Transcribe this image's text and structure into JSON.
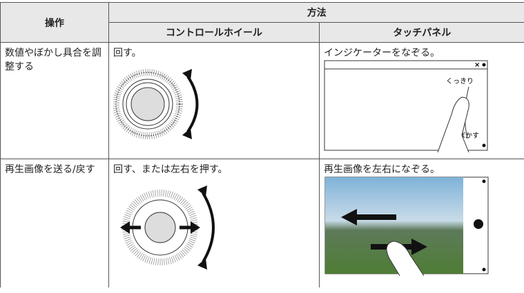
{
  "table": {
    "header": {
      "operation": "操作",
      "method": "方法",
      "wheel": "コントロールホイール",
      "touch": "タッチパネル"
    },
    "rows": [
      {
        "label": "数値やぼかし具合を調整する",
        "wheel": "回す。",
        "touch": "インジケーターをなぞる。",
        "touch_labels": [
          "くっきり",
          "ぼかす"
        ]
      },
      {
        "label": "再生画像を送る/戻す",
        "wheel": "回す、または左右を押す。",
        "touch": "再生画像を左右になぞる。"
      }
    ]
  }
}
